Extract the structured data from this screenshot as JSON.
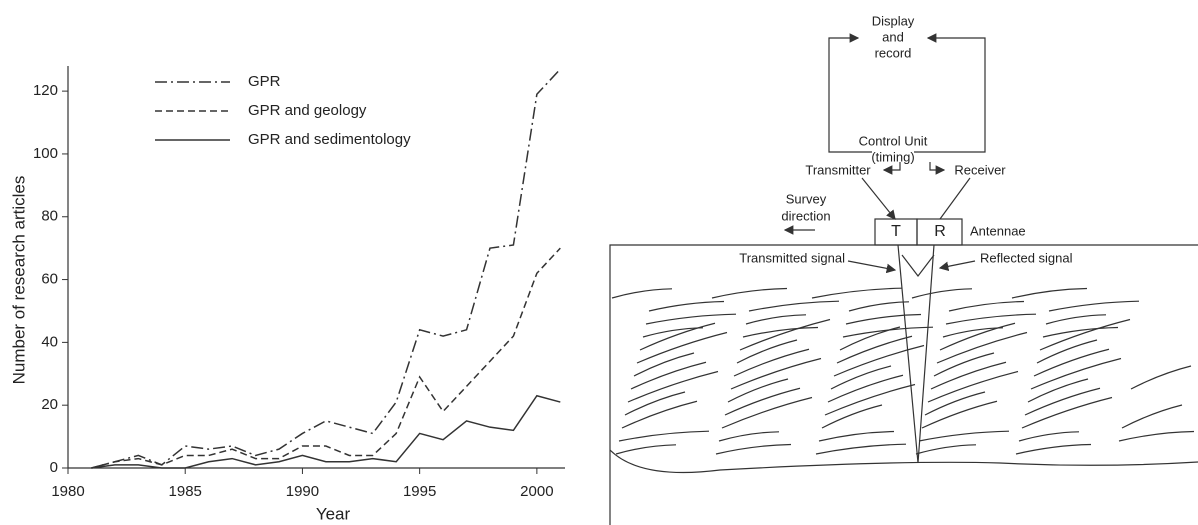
{
  "chart_data": {
    "type": "line",
    "x": [
      1981,
      1982,
      1983,
      1984,
      1985,
      1986,
      1987,
      1988,
      1989,
      1990,
      1991,
      1992,
      1993,
      1994,
      1995,
      1996,
      1997,
      1998,
      1999,
      2000,
      2001
    ],
    "series": [
      {
        "name": "GPR",
        "color": "#333333",
        "dash": "dashdot",
        "values": [
          0,
          2,
          4,
          1,
          7,
          6,
          7,
          4,
          6,
          11,
          15,
          13,
          11,
          21,
          44,
          42,
          44,
          70,
          71,
          119,
          127
        ]
      },
      {
        "name": "GPR and geology",
        "color": "#333333",
        "dash": "dashed",
        "values": [
          0,
          2,
          3,
          1,
          4,
          4,
          6,
          3,
          3,
          7,
          7,
          4,
          4,
          11,
          29,
          18,
          26,
          34,
          42,
          62,
          70
        ]
      },
      {
        "name": "GPR and sedimentology",
        "color": "#333333",
        "dash": "solid",
        "values": [
          0,
          1,
          1,
          0,
          0,
          2,
          3,
          1,
          2,
          4,
          2,
          2,
          3,
          2,
          11,
          9,
          15,
          13,
          12,
          23,
          21
        ]
      }
    ],
    "x_label": "Year",
    "y_label": "Number of research articles",
    "xlim": [
      1980,
      2001.2
    ],
    "xticks": [
      1980,
      1985,
      1990,
      1995,
      2000
    ],
    "ylim": [
      0,
      128
    ],
    "yticks": [
      0,
      20,
      40,
      60,
      80,
      100,
      120
    ],
    "legend": "top-left"
  },
  "diagram": {
    "display": [
      "Display",
      "and",
      "record"
    ],
    "control": [
      "Control Unit",
      "(timing)"
    ],
    "transmitter": "Transmitter",
    "receiver": "Receiver",
    "survey": [
      "Survey",
      "direction"
    ],
    "t": "T",
    "r": "R",
    "antennae": "Antennae",
    "transmitted": "Transmitted signal",
    "reflected": "Reflected signal"
  }
}
